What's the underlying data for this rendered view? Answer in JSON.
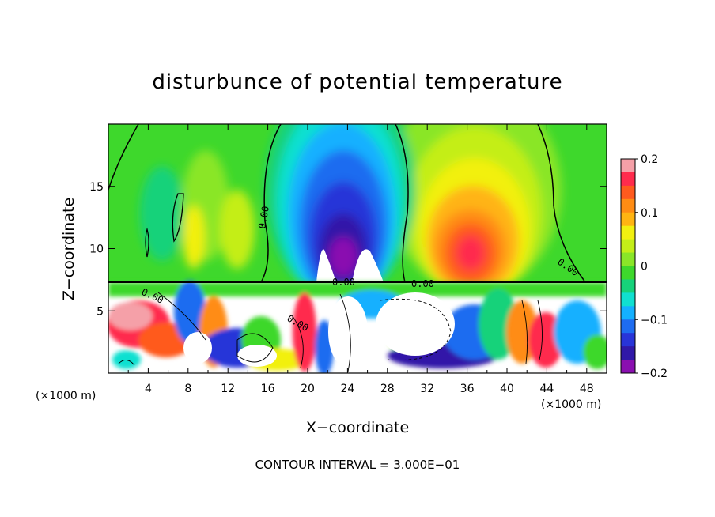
{
  "chart_data": {
    "type": "heatmap",
    "title": "disturbunce of potential temperature",
    "xlabel": "X−coordinate",
    "ylabel": "Z−coordinate",
    "x_unit_left": "(×1000 m)",
    "x_unit_right": "(×1000 m)",
    "xlim": [
      0,
      50
    ],
    "ylim": [
      0,
      20
    ],
    "x_ticks": [
      "4",
      "8",
      "12",
      "16",
      "20",
      "24",
      "28",
      "32",
      "36",
      "40",
      "44",
      "48"
    ],
    "y_ticks": [
      "5",
      "10",
      "15"
    ],
    "colorbar": {
      "range": [
        -0.2,
        0.2
      ],
      "ticks": [
        "0.2",
        "0.1",
        "0",
        "−0.1",
        "−0.2"
      ],
      "colors": [
        "#f5a0a8",
        "#ff2b4d",
        "#ff5a1e",
        "#ff8c14",
        "#ffb412",
        "#f2f010",
        "#c4ee18",
        "#8ae628",
        "#3ed82c",
        "#16d27a",
        "#10e0d0",
        "#14b0ff",
        "#1e6cf0",
        "#2834d8",
        "#3018a8",
        "#8a10b0"
      ]
    },
    "contour_labels": [
      "0.00",
      "0.00",
      "0.00",
      "0.00",
      "0.00",
      "0.00"
    ],
    "contour_interval_note": "CONTOUR INTERVAL = 3.000E−01"
  }
}
